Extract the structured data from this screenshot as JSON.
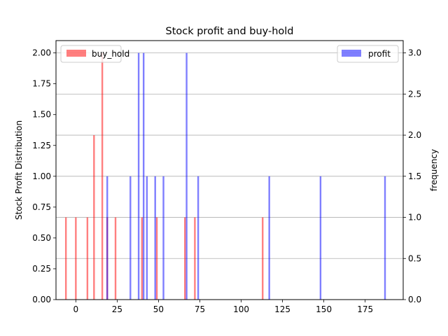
{
  "chart_data": {
    "type": "bar",
    "title": "Stock profit and buy-hold",
    "xlabel": "",
    "ylabel_left": "Stock Profit Distribution",
    "ylabel_right": "frequency",
    "xlim": [
      -12,
      198
    ],
    "xticks": [
      0,
      25,
      50,
      75,
      100,
      125,
      150,
      175
    ],
    "ylim_left": [
      0,
      2.1
    ],
    "yticks_left": [
      "0.00",
      "0.25",
      "0.50",
      "0.75",
      "1.00",
      "1.25",
      "1.50",
      "1.75",
      "2.00"
    ],
    "ylim_right": [
      0,
      3.15
    ],
    "yticks_right": [
      "0.0",
      "0.5",
      "1.0",
      "1.5",
      "2.0",
      "2.5",
      "3.0"
    ],
    "grid": "horizontal lines on right axis",
    "series": [
      {
        "name": "buy_hold",
        "axis": "left",
        "color": "#ff0000",
        "alpha": 0.5,
        "x": [
          -6,
          0,
          7,
          11,
          16,
          19,
          24,
          40,
          49,
          66,
          72,
          113
        ],
        "values": [
          0.667,
          0.667,
          0.667,
          1.333,
          2.0,
          0.667,
          0.667,
          0.667,
          0.667,
          0.667,
          0.667,
          0.667
        ],
        "legend_position": "upper left"
      },
      {
        "name": "profit",
        "axis": "right",
        "color": "#0000ff",
        "alpha": 0.5,
        "x": [
          19,
          33,
          38,
          41,
          43,
          48,
          53,
          67,
          74,
          117,
          148,
          187
        ],
        "values": [
          1.5,
          1.5,
          3.0,
          3.0,
          1.5,
          1.5,
          1.5,
          3.0,
          1.5,
          1.5,
          1.5,
          1.5
        ],
        "legend_position": "upper right"
      }
    ]
  }
}
